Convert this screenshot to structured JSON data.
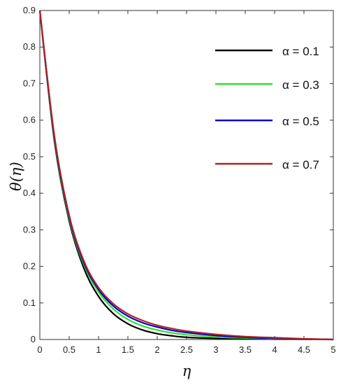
{
  "chart_data": {
    "type": "line",
    "xlabel": "η",
    "ylabel": "θ(η)",
    "xlim": [
      0,
      5
    ],
    "ylim": [
      0,
      0.9
    ],
    "xticks": [
      "0",
      "0.5",
      "1",
      "1.5",
      "2",
      "2.5",
      "3",
      "3.5",
      "4",
      "4.5",
      "5"
    ],
    "yticks": [
      "0",
      "0.1",
      "0.2",
      "0.3",
      "0.4",
      "0.5",
      "0.6",
      "0.7",
      "0.8",
      "0.9"
    ],
    "grid": false,
    "legend_position": "top-right",
    "x": [
      0,
      0.25,
      0.5,
      0.75,
      1,
      1.25,
      1.5,
      1.75,
      2,
      2.25,
      2.5,
      3,
      3.5,
      4,
      4.5,
      5
    ],
    "series": [
      {
        "name": "α = 0.1",
        "color": "#000000",
        "values": [
          0.9,
          0.54,
          0.324,
          0.195,
          0.118,
          0.071,
          0.043,
          0.026,
          0.016,
          0.01,
          0.006,
          0.003,
          0.002,
          0.001,
          0.0005,
          0.0
        ]
      },
      {
        "name": "α = 0.3",
        "color": "#33dd33",
        "values": [
          0.9,
          0.545,
          0.33,
          0.205,
          0.13,
          0.084,
          0.055,
          0.037,
          0.026,
          0.018,
          0.013,
          0.007,
          0.004,
          0.002,
          0.001,
          0.0
        ]
      },
      {
        "name": "α = 0.5",
        "color": "#0000cc",
        "values": [
          0.9,
          0.55,
          0.335,
          0.21,
          0.137,
          0.092,
          0.064,
          0.046,
          0.034,
          0.025,
          0.019,
          0.011,
          0.006,
          0.003,
          0.0015,
          0.0
        ]
      },
      {
        "name": "α = 0.7",
        "color": "#b22222",
        "values": [
          0.9,
          0.555,
          0.34,
          0.215,
          0.142,
          0.098,
          0.07,
          0.052,
          0.039,
          0.03,
          0.023,
          0.014,
          0.008,
          0.005,
          0.002,
          0.0
        ]
      }
    ]
  }
}
